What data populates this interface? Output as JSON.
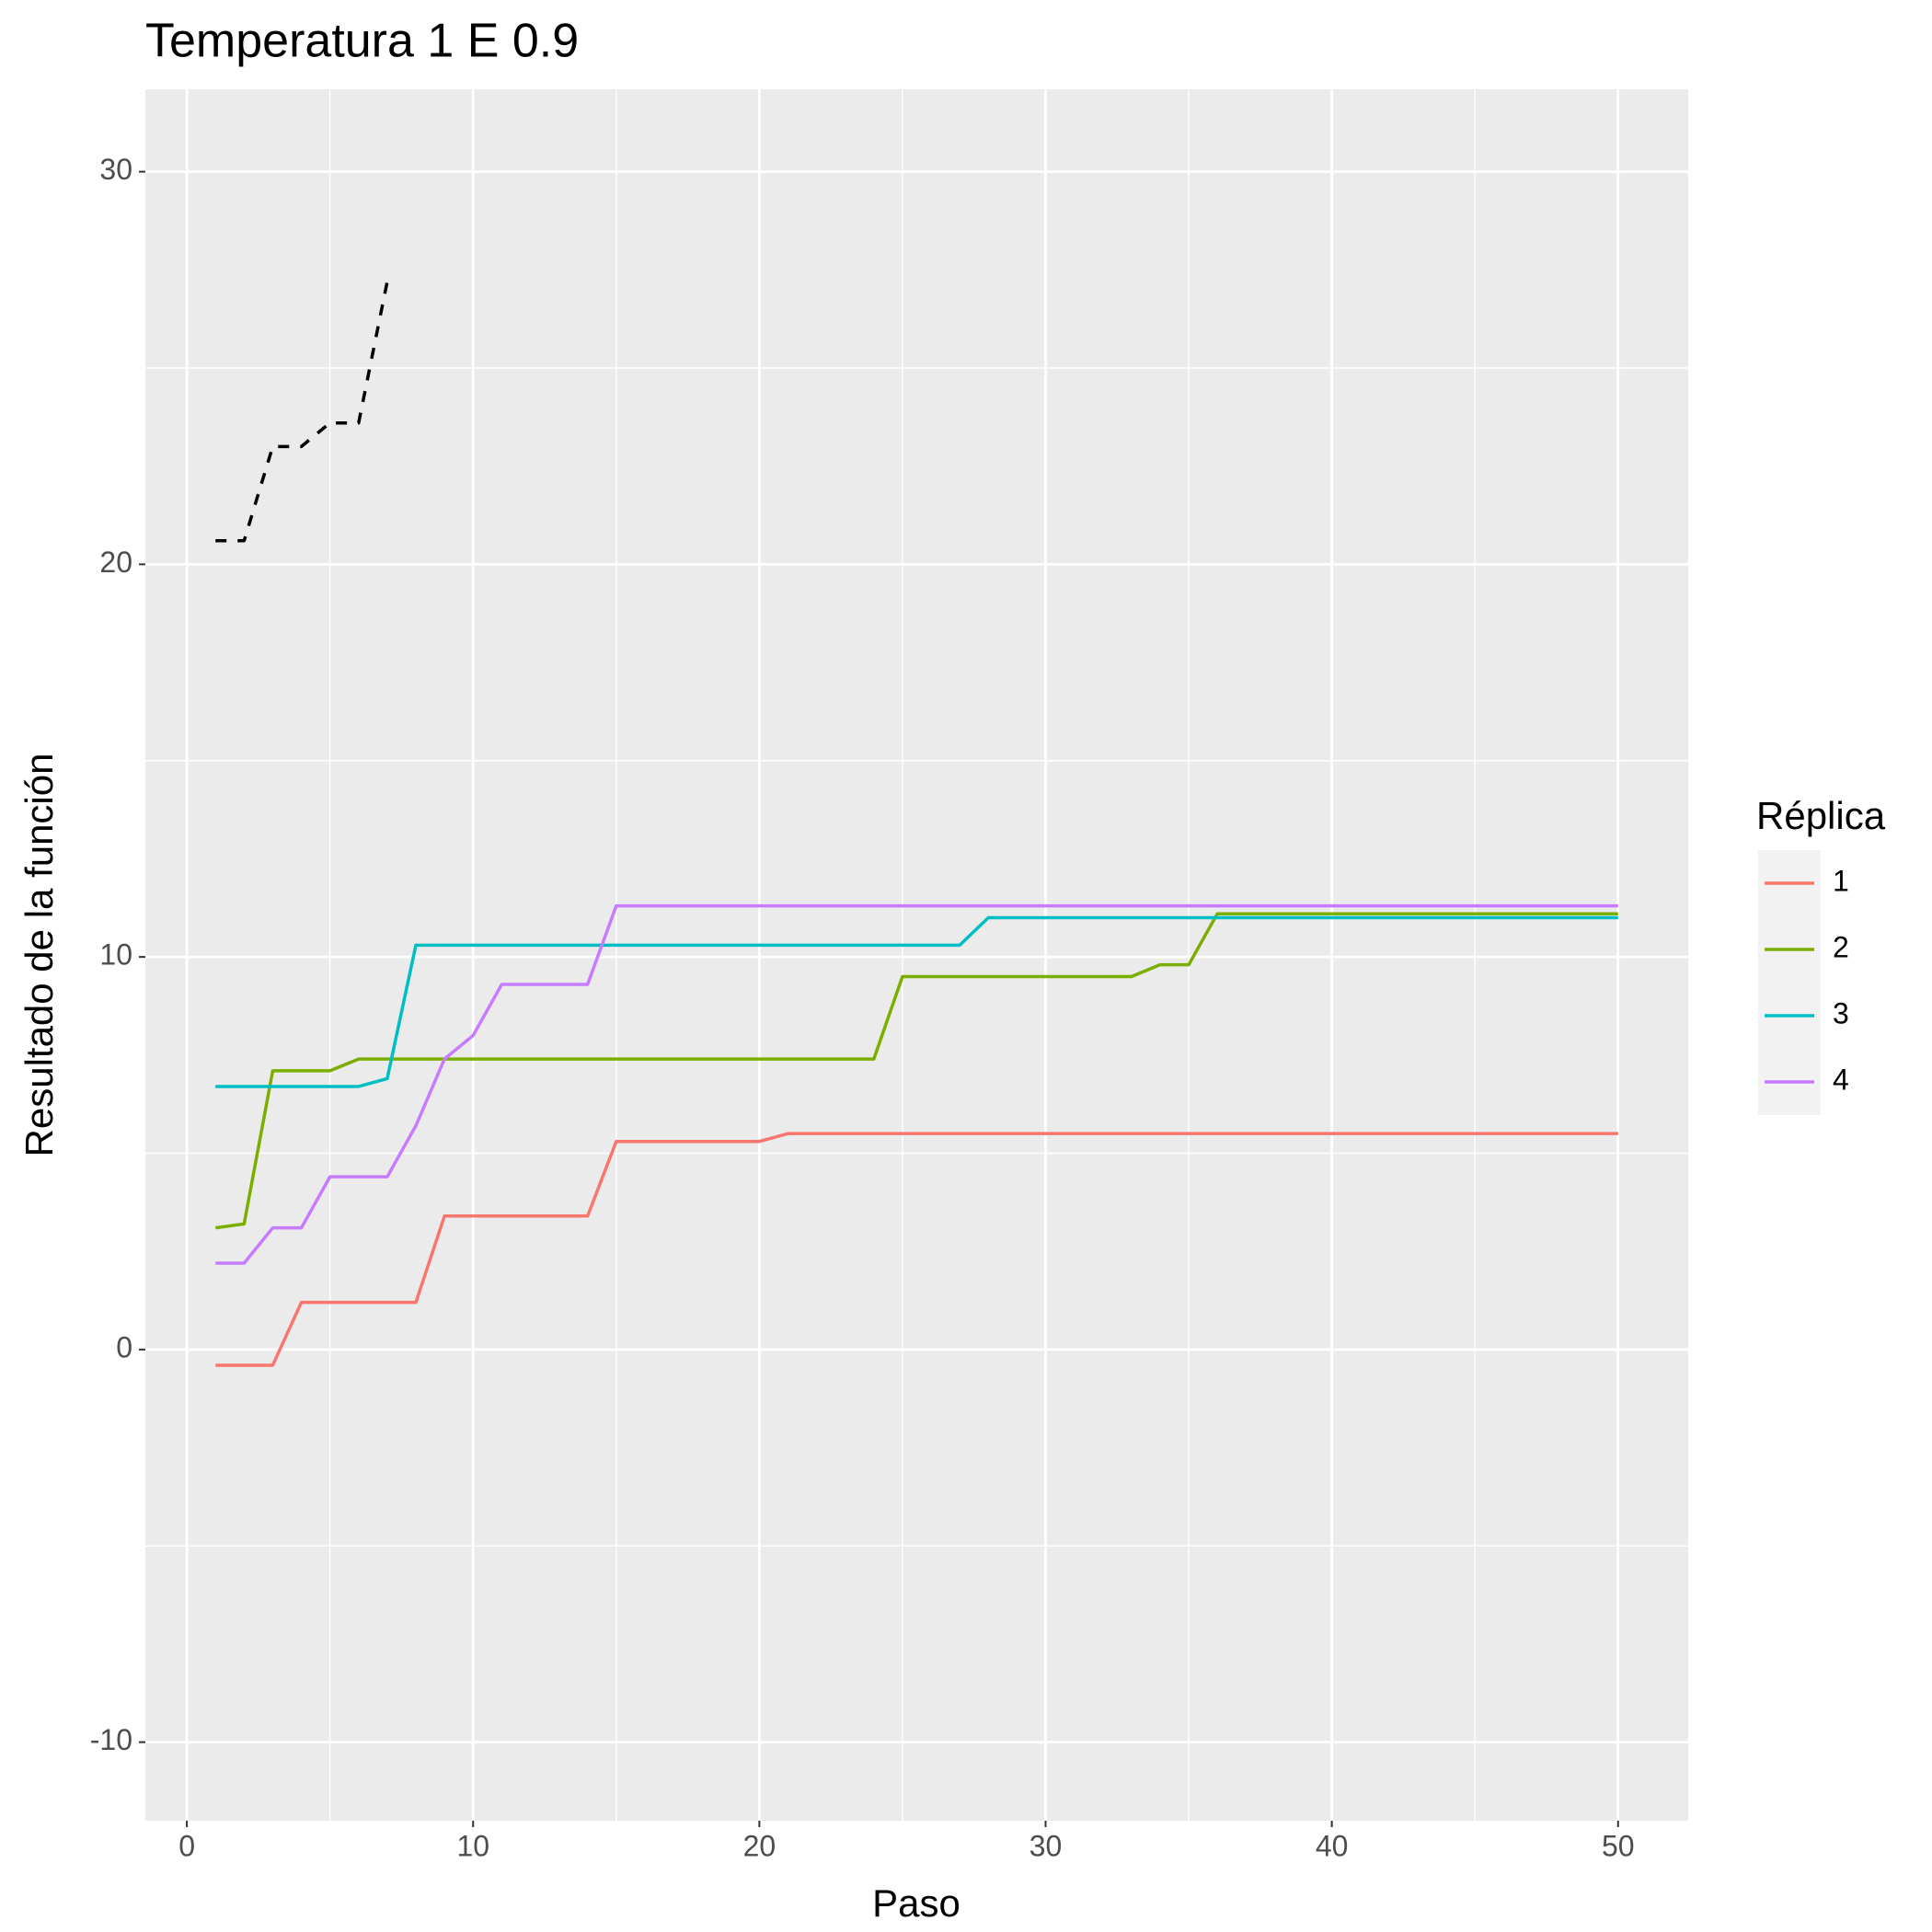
{
  "chart_data": {
    "type": "line",
    "title": "Temperatura 1 E 0.9",
    "x_label": "Paso",
    "y_label": "Resultado de la función",
    "legend_title": "Réplica",
    "legend_position": "right",
    "grid": true,
    "x": [
      1,
      2,
      3,
      4,
      5,
      6,
      7,
      8,
      9,
      10,
      11,
      12,
      13,
      14,
      15,
      16,
      17,
      18,
      19,
      20,
      21,
      22,
      23,
      24,
      25,
      26,
      27,
      28,
      29,
      30,
      31,
      32,
      33,
      34,
      35,
      36,
      37,
      38,
      39,
      40,
      41,
      42,
      43,
      44,
      45,
      46,
      47,
      48,
      49,
      50
    ],
    "xlim": [
      -1.45,
      52.45
    ],
    "xticks": [
      0,
      10,
      20,
      30,
      40,
      50
    ],
    "ylim": [
      -12,
      32.1
    ],
    "yticks": [
      -10,
      0,
      10,
      20,
      30
    ],
    "series": [
      {
        "name": "1",
        "color": "#F8766D",
        "values": [
          -0.4,
          -0.4,
          -0.4,
          1.2,
          1.2,
          1.2,
          1.2,
          1.2,
          3.4,
          3.4,
          3.4,
          3.4,
          3.4,
          3.4,
          5.3,
          5.3,
          5.3,
          5.3,
          5.3,
          5.3,
          5.5,
          5.5,
          5.5,
          5.5,
          5.5,
          5.5,
          5.5,
          5.5,
          5.5,
          5.5,
          5.5,
          5.5,
          5.5,
          5.5,
          5.5,
          5.5,
          5.5,
          5.5,
          5.5,
          5.5,
          5.5,
          5.5,
          5.5,
          5.5,
          5.5,
          5.5,
          5.5,
          5.5,
          5.5,
          5.5
        ]
      },
      {
        "name": "2",
        "color": "#7CAE00",
        "values": [
          3.1,
          3.2,
          7.1,
          7.1,
          7.1,
          7.4,
          7.4,
          7.4,
          7.4,
          7.4,
          7.4,
          7.4,
          7.4,
          7.4,
          7.4,
          7.4,
          7.4,
          7.4,
          7.4,
          7.4,
          7.4,
          7.4,
          7.4,
          7.4,
          9.5,
          9.5,
          9.5,
          9.5,
          9.5,
          9.5,
          9.5,
          9.5,
          9.5,
          9.8,
          9.8,
          11.1,
          11.1,
          11.1,
          11.1,
          11.1,
          11.1,
          11.1,
          11.1,
          11.1,
          11.1,
          11.1,
          11.1,
          11.1,
          11.1,
          11.1
        ]
      },
      {
        "name": "3",
        "color": "#00BFC4",
        "values": [
          6.7,
          6.7,
          6.7,
          6.7,
          6.7,
          6.7,
          6.9,
          10.3,
          10.3,
          10.3,
          10.3,
          10.3,
          10.3,
          10.3,
          10.3,
          10.3,
          10.3,
          10.3,
          10.3,
          10.3,
          10.3,
          10.3,
          10.3,
          10.3,
          10.3,
          10.3,
          10.3,
          11.0,
          11.0,
          11.0,
          11.0,
          11.0,
          11.0,
          11.0,
          11.0,
          11.0,
          11.0,
          11.0,
          11.0,
          11.0,
          11.0,
          11.0,
          11.0,
          11.0,
          11.0,
          11.0,
          11.0,
          11.0,
          11.0,
          11.0
        ]
      },
      {
        "name": "4",
        "color": "#C77CFF",
        "values": [
          2.2,
          2.2,
          3.1,
          3.1,
          4.4,
          4.4,
          4.4,
          5.7,
          7.4,
          8.0,
          9.3,
          9.3,
          9.3,
          9.3,
          11.3,
          11.3,
          11.3,
          11.3,
          11.3,
          11.3,
          11.3,
          11.3,
          11.3,
          11.3,
          11.3,
          11.3,
          11.3,
          11.3,
          11.3,
          11.3,
          11.3,
          11.3,
          11.3,
          11.3,
          11.3,
          11.3,
          11.3,
          11.3,
          11.3,
          11.3,
          11.3,
          11.3,
          11.3,
          11.3,
          11.3,
          11.3,
          11.3,
          11.3,
          11.3,
          11.3
        ]
      },
      {
        "color": "#000000",
        "dashed": true,
        "values": [
          20.6,
          20.6,
          23.0,
          23.0,
          23.6,
          23.6,
          27.2,
          null,
          null,
          null,
          null,
          null,
          null,
          null,
          null,
          null,
          null,
          null,
          null,
          null,
          null,
          null,
          null,
          null,
          null,
          null,
          null,
          null,
          null,
          null,
          null,
          null,
          null,
          null,
          null,
          null,
          null,
          null,
          null,
          null,
          null,
          null,
          null,
          null,
          null,
          null,
          null,
          null,
          null,
          null
        ]
      }
    ]
  }
}
